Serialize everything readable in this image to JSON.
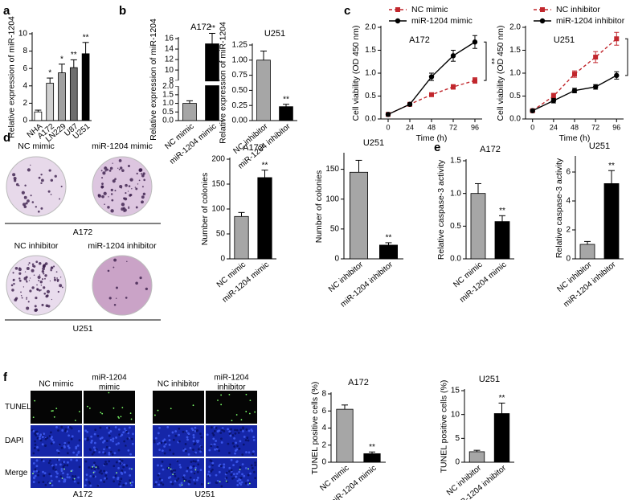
{
  "chart_data": [
    {
      "type": "bar",
      "panel": "a",
      "ylabel": "Relative expression of miR-1204",
      "categories": [
        "NHA",
        "A172",
        "LN229",
        "U87",
        "U251"
      ],
      "values": [
        1.0,
        4.3,
        5.5,
        6.1,
        7.7
      ],
      "errors": [
        0.2,
        0.6,
        1.0,
        0.9,
        1.3
      ],
      "annotations": [
        null,
        "*",
        "*",
        "**",
        "**"
      ],
      "colors": [
        "#ffffff",
        "#d0d0d0",
        "#a0a0a0",
        "#6e6e6e",
        "#000000"
      ],
      "ylim": [
        0,
        10
      ],
      "yticks": [
        0,
        2,
        4,
        6,
        8,
        10
      ]
    },
    {
      "type": "bar",
      "panel": "b",
      "title": "A172",
      "ylabel": "Relative expression of miR-1204",
      "categories": [
        "NC mimic",
        "miR-1204 mimic"
      ],
      "values": [
        1.0,
        15.0
      ],
      "errors": [
        0.15,
        2.0
      ],
      "annotations": [
        null,
        "**"
      ],
      "colors": [
        "#a6a6a6",
        "#000000"
      ],
      "ylim": [
        0,
        16
      ],
      "ybreak": [
        2,
        8
      ],
      "yticks": [
        {
          "value": 0,
          "label": "0.0"
        },
        0.5,
        {
          "value": 1,
          "label": "1.0"
        },
        1.5,
        {
          "value": 2,
          "label": "2.0"
        },
        8,
        10,
        12,
        14,
        16
      ]
    },
    {
      "type": "bar",
      "title": "U251",
      "ylabel": "Relative expression of miR-1204",
      "categories": [
        "NC inhibitor",
        "miR-1204 inhibitor"
      ],
      "values": [
        1.0,
        0.23
      ],
      "errors": [
        0.15,
        0.04
      ],
      "annotations": [
        null,
        "**"
      ],
      "colors": [
        "#a6a6a6",
        "#000000"
      ],
      "ylim": [
        0,
        1.25
      ],
      "yticks": [
        {
          "value": 0,
          "label": "0.00"
        },
        0.25,
        {
          "value": 0.5,
          "label": "0.50"
        },
        0.75,
        {
          "value": 1,
          "label": "1.00"
        },
        1.25
      ]
    },
    {
      "type": "line",
      "panel": "c",
      "title": "A172",
      "xlabel": "Time (h)",
      "ylabel": "Cell viability (OD 450 nm)",
      "x": [
        0,
        24,
        48,
        72,
        96
      ],
      "xlim": [
        -8,
        104
      ],
      "xticks": [
        0,
        24,
        48,
        72,
        96
      ],
      "ylim": [
        0,
        2
      ],
      "yticks": [
        {
          "value": 0,
          "label": "0.0"
        },
        0.5,
        {
          "value": 1,
          "label": "1.0"
        },
        1.5,
        {
          "value": 2,
          "label": "2.0"
        }
      ],
      "legend": "top",
      "annotation": "**",
      "series": [
        {
          "name": "NC mimic",
          "color": "#c1272d",
          "style": "dashed",
          "marker": "square",
          "values": [
            0.1,
            0.32,
            0.53,
            0.7,
            0.84
          ],
          "errors": [
            0.01,
            0.02,
            0.03,
            0.05,
            0.06
          ]
        },
        {
          "name": "miR-1204 mimic",
          "color": "#000000",
          "style": "solid",
          "marker": "circle",
          "values": [
            0.1,
            0.32,
            0.92,
            1.38,
            1.68
          ],
          "errors": [
            0.01,
            0.02,
            0.08,
            0.12,
            0.14
          ]
        }
      ]
    },
    {
      "type": "line",
      "title": "U251",
      "xlabel": "Time (h)",
      "ylabel": "Cell viability (OD 450 nm)",
      "x": [
        0,
        24,
        48,
        72,
        96
      ],
      "xlim": [
        -8,
        104
      ],
      "xticks": [
        0,
        24,
        48,
        72,
        96
      ],
      "ylim": [
        0,
        2
      ],
      "yticks": [
        {
          "value": 0,
          "label": "0.0"
        },
        0.5,
        {
          "value": 1,
          "label": "1.0"
        },
        1.5,
        {
          "value": 2,
          "label": "2.0"
        }
      ],
      "legend": "top",
      "annotation": "**",
      "series": [
        {
          "name": "NC inhibitor",
          "color": "#c1272d",
          "style": "dashed",
          "marker": "square",
          "values": [
            0.18,
            0.5,
            0.98,
            1.35,
            1.75
          ],
          "errors": [
            0.02,
            0.06,
            0.07,
            0.12,
            0.14
          ]
        },
        {
          "name": "miR-1204 inhibitor",
          "color": "#000000",
          "style": "solid",
          "marker": "circle",
          "values": [
            0.18,
            0.4,
            0.62,
            0.7,
            0.95
          ],
          "errors": [
            0.02,
            0.05,
            0.05,
            0.05,
            0.08
          ]
        }
      ]
    },
    {
      "type": "bar",
      "title": "A172",
      "ylabel": "Number of colonies",
      "categories": [
        "NC mimic",
        "miR-1204 mimic"
      ],
      "values": [
        85,
        163
      ],
      "errors": [
        8,
        15
      ],
      "annotations": [
        null,
        "**"
      ],
      "colors": [
        "#a6a6a6",
        "#000000"
      ],
      "ylim": [
        0,
        200
      ],
      "yticks": [
        0,
        50,
        100,
        150,
        200
      ]
    },
    {
      "type": "bar",
      "title": "U251",
      "ylabel": "Number of colonies",
      "categories": [
        "NC inhibitor",
        "miR-1204 inhibitor"
      ],
      "values": [
        145,
        23
      ],
      "errors": [
        20,
        4
      ],
      "annotations": [
        null,
        "**"
      ],
      "colors": [
        "#a6a6a6",
        "#000000"
      ],
      "ylim": [
        0,
        175
      ],
      "yticks": [
        0,
        50,
        100,
        150
      ]
    },
    {
      "type": "bar",
      "panel": "e",
      "title": "A172",
      "ylabel": "Relative caspase-3 activity",
      "categories": [
        "NC mimic",
        "miR-1204 mimic"
      ],
      "values": [
        1.0,
        0.57
      ],
      "errors": [
        0.15,
        0.09
      ],
      "annotations": [
        null,
        "**"
      ],
      "colors": [
        "#a6a6a6",
        "#000000"
      ],
      "ylim": [
        0,
        1.5
      ],
      "yticks": [
        {
          "value": 0,
          "label": "0.0"
        },
        0.5,
        {
          "value": 1,
          "label": "1.0"
        },
        1.5
      ]
    },
    {
      "type": "bar",
      "title": "U251",
      "ylabel": "Relative caspase-3 activity",
      "categories": [
        "NC inhibitor",
        "miR-1204 inhibitor"
      ],
      "values": [
        1.0,
        5.2
      ],
      "errors": [
        0.2,
        0.9
      ],
      "annotations": [
        null,
        "**"
      ],
      "colors": [
        "#a6a6a6",
        "#000000"
      ],
      "ylim": [
        0,
        7
      ],
      "yticks": [
        0,
        2,
        4,
        6
      ]
    },
    {
      "type": "bar",
      "title": "A172",
      "ylabel": "TUNEL positive cells (%)",
      "categories": [
        "NC mimic",
        "miR-1204 mimic"
      ],
      "values": [
        6.2,
        1.0
      ],
      "errors": [
        0.5,
        0.2
      ],
      "annotations": [
        null,
        "**"
      ],
      "colors": [
        "#a6a6a6",
        "#000000"
      ],
      "ylim": [
        0,
        8
      ],
      "yticks": [
        0,
        2,
        4,
        6,
        8
      ]
    },
    {
      "type": "bar",
      "title": "U251",
      "ylabel": "TUNEL positive cells (%)",
      "categories": [
        "NC inhibitor",
        "miR-1204 inhibitor"
      ],
      "values": [
        2.2,
        10.2
      ],
      "errors": [
        0.3,
        2.2
      ],
      "annotations": [
        null,
        "**"
      ],
      "colors": [
        "#a6a6a6",
        "#000000"
      ],
      "ylim": [
        0,
        15
      ],
      "yticks": [
        0,
        5,
        10,
        15
      ]
    }
  ],
  "images": {
    "d": {
      "panel": "d",
      "top_labels": [
        "NC mimic",
        "miR-1204 mimic"
      ],
      "top_cell": "A172",
      "bottom_labels": [
        "NC inhibitor",
        "miR-1204 inhibitor"
      ],
      "bottom_cell": "U251"
    },
    "f": {
      "panel": "f",
      "rows": [
        "TUNEL",
        "DAPI",
        "Merge"
      ],
      "groups": [
        {
          "cell": "A172",
          "columns": [
            [
              "NC mimic"
            ],
            [
              "miR-1204",
              "mimic"
            ]
          ]
        },
        {
          "cell": "U251",
          "columns": [
            [
              "NC inhibitor"
            ],
            [
              "miR-1204",
              "inhibitor"
            ]
          ]
        }
      ]
    }
  }
}
